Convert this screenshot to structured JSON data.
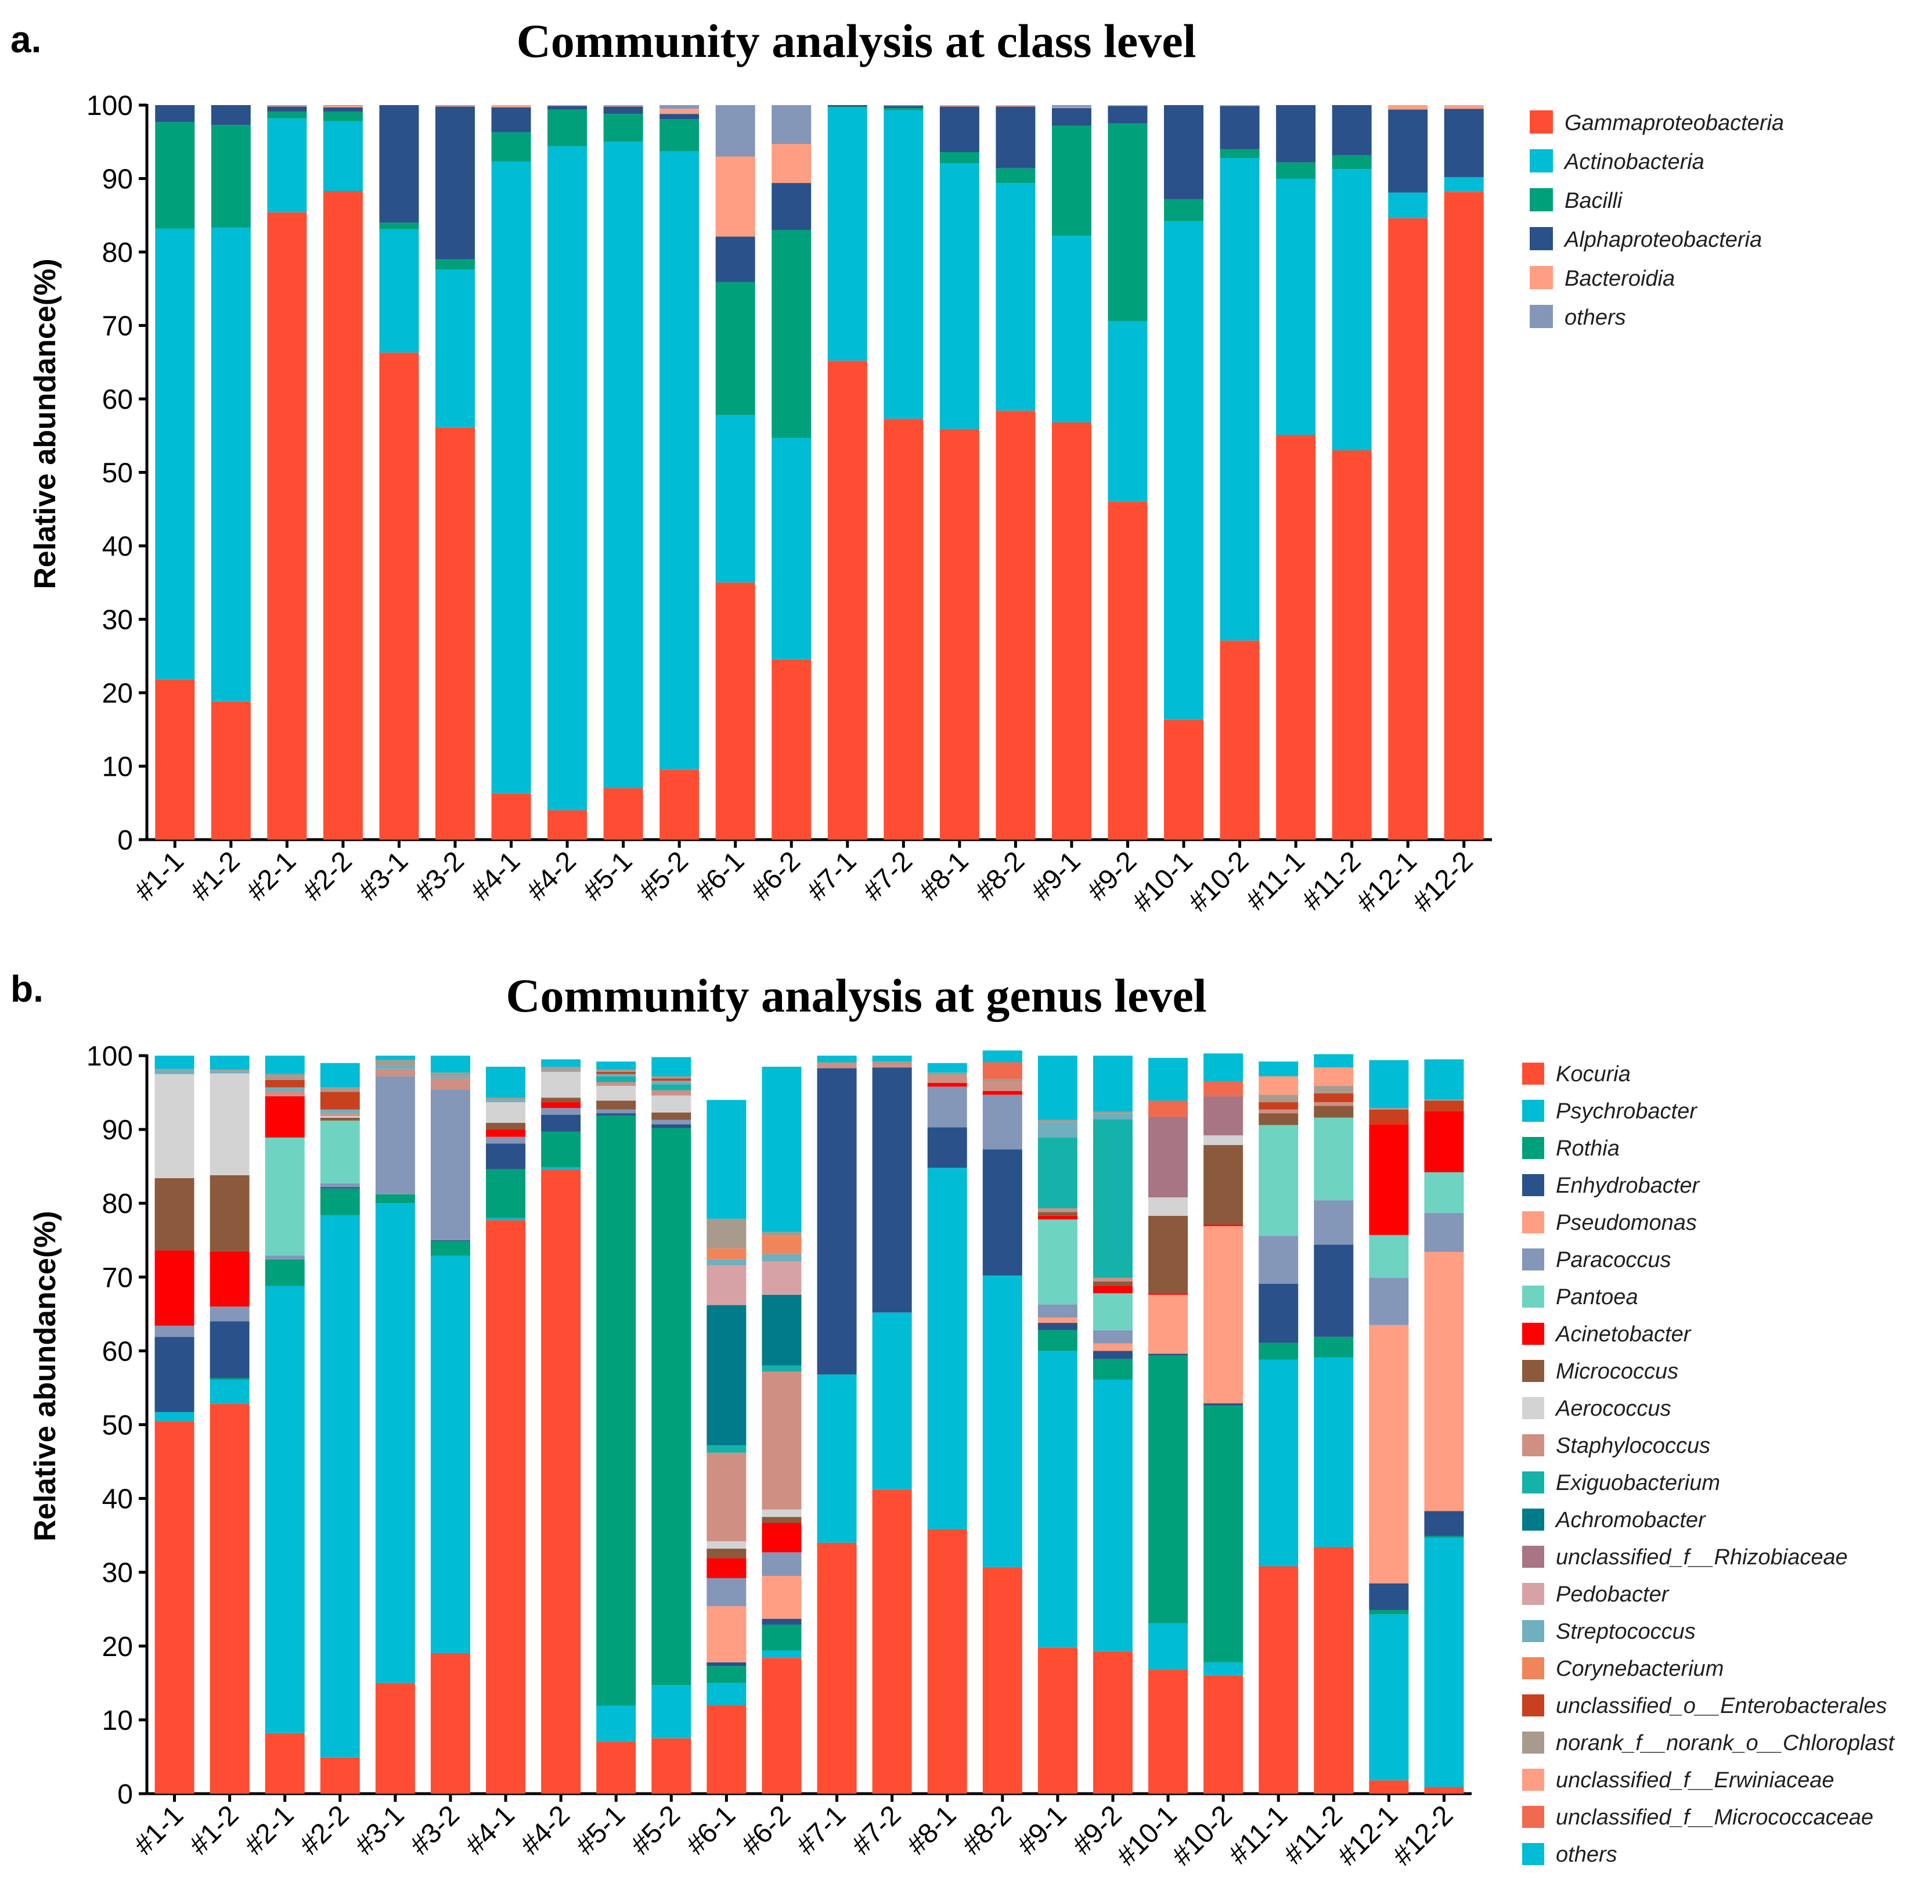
{
  "chart_data": [
    {
      "type": "bar",
      "stacked": true,
      "panel": "a.",
      "title": "Community analysis at class level",
      "ylabel": "Relative abundance(%)",
      "xlabel": "",
      "ylim": [
        0,
        100
      ],
      "yticks": [
        0,
        10,
        20,
        30,
        40,
        50,
        60,
        70,
        80,
        90,
        100
      ],
      "categories": [
        "#1-1",
        "#1-2",
        "#2-1",
        "#2-2",
        "#3-1",
        "#3-2",
        "#4-1",
        "#4-2",
        "#5-1",
        "#5-2",
        "#6-1",
        "#6-2",
        "#7-1",
        "#7-2",
        "#8-1",
        "#8-2",
        "#9-1",
        "#9-2",
        "#10-1",
        "#10-2",
        "#11-1",
        "#11-2",
        "#12-1",
        "#12-2"
      ],
      "series": [
        {
          "name": "Gammaproteobacteria",
          "color": "#FF4D33",
          "values": [
            21.8,
            18.8,
            85.4,
            88.3,
            66.3,
            56.1,
            6.3,
            4.0,
            7.0,
            9.5,
            35.0,
            24.5,
            65.2,
            57.3,
            55.9,
            58.4,
            56.8,
            46.0,
            16.3,
            27.1,
            55.1,
            53.0,
            84.6,
            88.2
          ]
        },
        {
          "name": "Actinobacteria",
          "color": "#00BCD4",
          "values": [
            61.4,
            64.5,
            12.8,
            9.5,
            16.8,
            21.5,
            86.0,
            90.4,
            88.0,
            84.2,
            22.8,
            30.2,
            34.5,
            42.0,
            36.2,
            31.0,
            25.4,
            24.6,
            67.9,
            65.7,
            34.9,
            38.3,
            3.5,
            2.0
          ]
        },
        {
          "name": "Bacilli",
          "color": "#00A07A",
          "values": [
            14.5,
            14.0,
            0.9,
            1.3,
            0.9,
            1.4,
            4.0,
            5.0,
            3.8,
            4.4,
            18.1,
            28.3,
            0.1,
            0.3,
            1.5,
            2.0,
            15.0,
            26.9,
            3.0,
            1.2,
            2.2,
            1.9,
            0.0,
            0.0
          ]
        },
        {
          "name": "Alphaproteobacteria",
          "color": "#2A5189",
          "values": [
            2.3,
            2.7,
            0.7,
            0.6,
            16.0,
            20.8,
            3.4,
            0.5,
            1.0,
            0.7,
            6.2,
            6.4,
            0.2,
            0.3,
            6.2,
            8.4,
            2.4,
            2.4,
            12.8,
            5.9,
            7.8,
            6.8,
            11.3,
            9.3
          ]
        },
        {
          "name": "Bacteroidia",
          "color": "#FF9E82",
          "values": [
            0.0,
            0.0,
            0.1,
            0.2,
            0.0,
            0.1,
            0.3,
            0.1,
            0.1,
            0.7,
            10.9,
            5.3,
            0.0,
            0.0,
            0.2,
            0.2,
            0.1,
            0.1,
            0.0,
            0.1,
            0.0,
            0.0,
            0.6,
            0.5
          ]
        },
        {
          "name": "others",
          "color": "#8497B8",
          "values": [
            0.0,
            0.0,
            0.1,
            0.1,
            0.0,
            0.1,
            0.0,
            0.0,
            0.1,
            0.5,
            7.0,
            5.3,
            0.0,
            0.1,
            0.0,
            0.0,
            0.3,
            0.0,
            0.0,
            0.0,
            0.0,
            0.0,
            0.0,
            0.0
          ]
        }
      ]
    },
    {
      "type": "bar",
      "stacked": true,
      "panel": "b.",
      "title": "Community analysis at genus level",
      "ylabel": "Relative abundance(%)",
      "xlabel": "",
      "ylim": [
        0,
        100
      ],
      "yticks": [
        0,
        10,
        20,
        30,
        40,
        50,
        60,
        70,
        80,
        90,
        100
      ],
      "categories": [
        "#1-1",
        "#1-2",
        "#2-1",
        "#2-2",
        "#3-1",
        "#3-2",
        "#4-1",
        "#4-2",
        "#5-1",
        "#5-2",
        "#6-1",
        "#6-2",
        "#7-1",
        "#7-2",
        "#8-1",
        "#8-2",
        "#9-1",
        "#9-2",
        "#10-1",
        "#10-2",
        "#11-1",
        "#11-2",
        "#12-1",
        "#12-2"
      ],
      "series": [
        {
          "name": "Kocuria",
          "color": "#FF4D33",
          "values": [
            50.5,
            52.8,
            8.2,
            4.9,
            15.0,
            19.0,
            77.7,
            84.5,
            7.0,
            7.5,
            12.0,
            18.4,
            34.0,
            41.2,
            35.8,
            30.7,
            19.8,
            19.3,
            16.8,
            16.0,
            30.8,
            33.4,
            1.8,
            0.9
          ]
        },
        {
          "name": "Psychrobacter",
          "color": "#00BCD4",
          "values": [
            1.2,
            3.3,
            60.6,
            73.5,
            65.0,
            53.9,
            0.3,
            0.4,
            4.9,
            7.2,
            3.0,
            1.0,
            22.8,
            24.0,
            49.0,
            39.5,
            40.2,
            36.8,
            6.3,
            1.8,
            28.0,
            25.7,
            22.5,
            33.8
          ]
        },
        {
          "name": "Rothia",
          "color": "#00A07A",
          "values": [
            0.0,
            0.2,
            3.6,
            3.6,
            1.2,
            2.0,
            6.6,
            4.8,
            80.0,
            75.5,
            2.3,
            3.5,
            0.0,
            0.0,
            0.0,
            0.0,
            2.8,
            2.8,
            36.3,
            34.8,
            2.3,
            2.8,
            0.6,
            0.2
          ]
        },
        {
          "name": "Enhydrobacter",
          "color": "#2A5189",
          "values": [
            10.2,
            7.7,
            0.0,
            0.2,
            0.0,
            0.1,
            3.5,
            2.3,
            0.3,
            0.5,
            0.5,
            0.8,
            41.5,
            33.2,
            5.5,
            17.1,
            1.0,
            1.1,
            0.2,
            0.3,
            8.0,
            12.5,
            3.6,
            3.4
          ]
        },
        {
          "name": "Pseudomonas",
          "color": "#FF9E82",
          "values": [
            0.0,
            0.0,
            0.0,
            0.0,
            0.0,
            0.0,
            0.0,
            0.0,
            0.0,
            0.0,
            7.6,
            5.8,
            0.0,
            0.0,
            0.0,
            0.0,
            0.7,
            1.0,
            8.0,
            24.0,
            0.0,
            0.0,
            35.0,
            35.1
          ]
        },
        {
          "name": "Paracoccus",
          "color": "#8497B8",
          "values": [
            1.5,
            2.0,
            0.5,
            0.5,
            16.0,
            20.4,
            0.9,
            0.9,
            0.5,
            0.6,
            3.8,
            3.2,
            0.0,
            0.0,
            5.5,
            7.4,
            1.8,
            1.8,
            0.0,
            0.0,
            6.5,
            6.0,
            6.4,
            5.3
          ]
        },
        {
          "name": "Pantoea",
          "color": "#6ED3C1",
          "values": [
            0.0,
            0.0,
            16.0,
            8.5,
            0.0,
            0.0,
            0.0,
            0.0,
            0.0,
            0.0,
            0.0,
            0.0,
            0.0,
            0.0,
            0.0,
            0.0,
            11.5,
            5.0,
            0.0,
            0.0,
            15.0,
            11.2,
            5.8,
            5.5
          ]
        },
        {
          "name": "Acinetobacter",
          "color": "#FF0000",
          "values": [
            10.2,
            7.5,
            5.6,
            0.0,
            0.0,
            0.0,
            1.0,
            0.8,
            0.0,
            0.0,
            2.7,
            4.0,
            0.0,
            0.0,
            0.5,
            0.5,
            0.5,
            1.0,
            0.2,
            0.2,
            0.0,
            0.0,
            15.0,
            8.3
          ]
        },
        {
          "name": "Micrococcus",
          "color": "#8B5A3C",
          "values": [
            9.8,
            10.3,
            0.0,
            0.4,
            0.0,
            0.0,
            0.9,
            0.6,
            1.2,
            1.0,
            1.3,
            0.8,
            0.0,
            0.0,
            0.0,
            0.0,
            0.5,
            0.6,
            10.5,
            10.8,
            1.6,
            1.6,
            0.0,
            0.0
          ]
        },
        {
          "name": "Aerococcus",
          "color": "#D3D3D3",
          "values": [
            14.1,
            13.8,
            0.0,
            0.2,
            0.0,
            0.0,
            2.8,
            3.5,
            2.0,
            2.3,
            1.0,
            1.0,
            0.0,
            0.0,
            0.0,
            0.0,
            0.0,
            0.0,
            2.5,
            1.3,
            0.0,
            0.0,
            0.0,
            0.0
          ]
        },
        {
          "name": "Staphylococcus",
          "color": "#D08F83",
          "values": [
            0.0,
            0.0,
            0.7,
            0.4,
            1.0,
            1.5,
            0.0,
            0.2,
            0.5,
            0.7,
            12.0,
            18.7,
            0.6,
            0.5,
            1.0,
            1.3,
            0.5,
            0.5,
            0.0,
            0.0,
            0.5,
            0.5,
            0.0,
            0.0
          ]
        },
        {
          "name": "Exiguobacterium",
          "color": "#15B2A9",
          "values": [
            0.0,
            0.0,
            0.0,
            0.0,
            0.0,
            0.0,
            0.0,
            0.0,
            0.8,
            0.8,
            1.0,
            0.8,
            0.0,
            0.0,
            0.0,
            0.0,
            9.6,
            21.5,
            0.0,
            0.0,
            0.0,
            0.0,
            0.0,
            0.0
          ]
        },
        {
          "name": "Achromobacter",
          "color": "#007B8A",
          "values": [
            0.0,
            0.0,
            0.0,
            0.0,
            0.0,
            0.0,
            0.0,
            0.0,
            0.0,
            0.0,
            19.0,
            9.6,
            0.0,
            0.0,
            0.0,
            0.0,
            0.0,
            0.0,
            0.0,
            0.0,
            0.0,
            0.0,
            0.0,
            0.0
          ]
        },
        {
          "name": "unclassified_f__Rhizobiaceae",
          "color": "#A87585",
          "values": [
            0.0,
            0.0,
            0.0,
            0.0,
            0.0,
            0.0,
            0.0,
            0.0,
            0.0,
            0.0,
            0.0,
            0.0,
            0.0,
            0.0,
            0.0,
            0.0,
            0.0,
            0.0,
            10.9,
            5.3,
            0.0,
            0.0,
            0.0,
            0.0
          ]
        },
        {
          "name": "Pedobacter",
          "color": "#D7A2A5",
          "values": [
            0.0,
            0.0,
            0.0,
            0.0,
            0.0,
            0.0,
            0.0,
            0.0,
            0.0,
            0.0,
            5.4,
            4.5,
            0.0,
            0.0,
            0.0,
            0.0,
            0.0,
            0.0,
            0.0,
            0.0,
            0.0,
            0.0,
            0.0,
            0.0
          ]
        },
        {
          "name": "Streptococcus",
          "color": "#70AFBE",
          "values": [
            0.5,
            0.3,
            0.5,
            0.5,
            0.5,
            0.3,
            0.3,
            0.2,
            0.3,
            0.5,
            0.8,
            1.0,
            0.0,
            0.0,
            0.0,
            0.0,
            2.1,
            0.8,
            0.0,
            0.0,
            0.0,
            0.0,
            0.0,
            0.0
          ]
        },
        {
          "name": "Corynebacterium",
          "color": "#F0855A",
          "values": [
            0.0,
            0.0,
            0.0,
            0.0,
            0.0,
            0.0,
            0.0,
            0.0,
            0.0,
            0.0,
            1.5,
            2.5,
            0.0,
            0.0,
            0.0,
            0.0,
            0.0,
            0.0,
            0.0,
            0.0,
            0.0,
            0.0,
            0.0,
            0.0
          ]
        },
        {
          "name": "unclassified_o__Enterobacterales",
          "color": "#C9401E",
          "values": [
            0.0,
            0.0,
            1.0,
            2.4,
            0.0,
            0.0,
            0.0,
            0.0,
            0.3,
            0.3,
            0.0,
            0.0,
            0.0,
            0.0,
            0.0,
            0.0,
            0.0,
            0.0,
            0.0,
            0.0,
            1.0,
            1.2,
            2.0,
            1.4
          ]
        },
        {
          "name": "norank_f__norank_o__Chloroplast",
          "color": "#A89A8D",
          "values": [
            0.2,
            0.2,
            0.8,
            0.6,
            0.7,
            0.5,
            0.3,
            0.3,
            0.3,
            0.3,
            4.0,
            0.5,
            0.2,
            0.3,
            0.4,
            0.3,
            0.3,
            0.2,
            0.0,
            0.0,
            1.0,
            1.0,
            0.2,
            0.2
          ]
        },
        {
          "name": "unclassified_f__Erwiniaceae",
          "color": "#FF9E82",
          "values": [
            0.0,
            0.0,
            0.0,
            0.0,
            0.0,
            0.0,
            0.0,
            0.0,
            0.0,
            0.0,
            0.0,
            0.0,
            0.0,
            0.0,
            0.0,
            0.0,
            0.0,
            0.0,
            0.0,
            0.0,
            2.5,
            2.5,
            0.0,
            0.0
          ]
        },
        {
          "name": "unclassified_f__Micrococcaceae",
          "color": "#F06A50",
          "values": [
            0.0,
            0.0,
            0.0,
            0.0,
            0.0,
            0.0,
            0.0,
            0.0,
            0.0,
            0.0,
            0.0,
            0.0,
            0.0,
            0.0,
            0.0,
            2.3,
            0.0,
            0.0,
            2.2,
            2.0,
            0.0,
            0.0,
            0.0,
            0.0
          ]
        },
        {
          "name": "others",
          "color": "#00BCD4",
          "values": [
            1.8,
            1.9,
            2.5,
            3.3,
            0.6,
            2.3,
            4.2,
            1.0,
            1.1,
            2.6,
            16.1,
            22.4,
            0.9,
            0.8,
            1.3,
            1.6,
            8.7,
            7.6,
            5.8,
            3.8,
            2.0,
            1.8,
            6.5,
            5.4
          ]
        }
      ]
    }
  ]
}
